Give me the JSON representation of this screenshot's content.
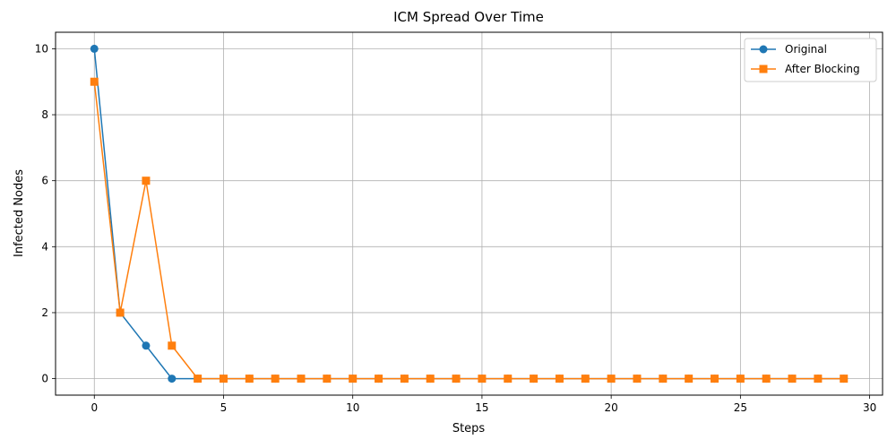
{
  "chart_data": {
    "type": "line",
    "title": "ICM Spread Over Time",
    "xlabel": "Steps",
    "ylabel": "Infected Nodes",
    "xlim": [
      -1.5,
      30.5
    ],
    "ylim": [
      -0.5,
      10.5
    ],
    "xticks": [
      0,
      5,
      10,
      15,
      20,
      25,
      30
    ],
    "yticks": [
      0,
      2,
      4,
      6,
      8,
      10
    ],
    "grid": true,
    "legend_position": "top-right",
    "x": [
      0,
      1,
      2,
      3,
      4,
      5,
      6,
      7,
      8,
      9,
      10,
      11,
      12,
      13,
      14,
      15,
      16,
      17,
      18,
      19,
      20,
      21,
      22,
      23,
      24,
      25,
      26,
      27,
      28,
      29
    ],
    "series": [
      {
        "name": "Original",
        "color": "#1f77b4",
        "marker": "circle",
        "values": [
          10,
          2,
          1,
          0,
          0,
          0,
          0,
          0,
          0,
          0,
          0,
          0,
          0,
          0,
          0,
          0,
          0,
          0,
          0,
          0,
          0,
          0,
          0,
          0,
          0,
          0,
          0,
          0,
          0,
          0
        ]
      },
      {
        "name": "After Blocking",
        "color": "#ff7f0e",
        "marker": "square",
        "values": [
          9,
          2,
          6,
          1,
          0,
          0,
          0,
          0,
          0,
          0,
          0,
          0,
          0,
          0,
          0,
          0,
          0,
          0,
          0,
          0,
          0,
          0,
          0,
          0,
          0,
          0,
          0,
          0,
          0,
          0
        ]
      }
    ]
  }
}
